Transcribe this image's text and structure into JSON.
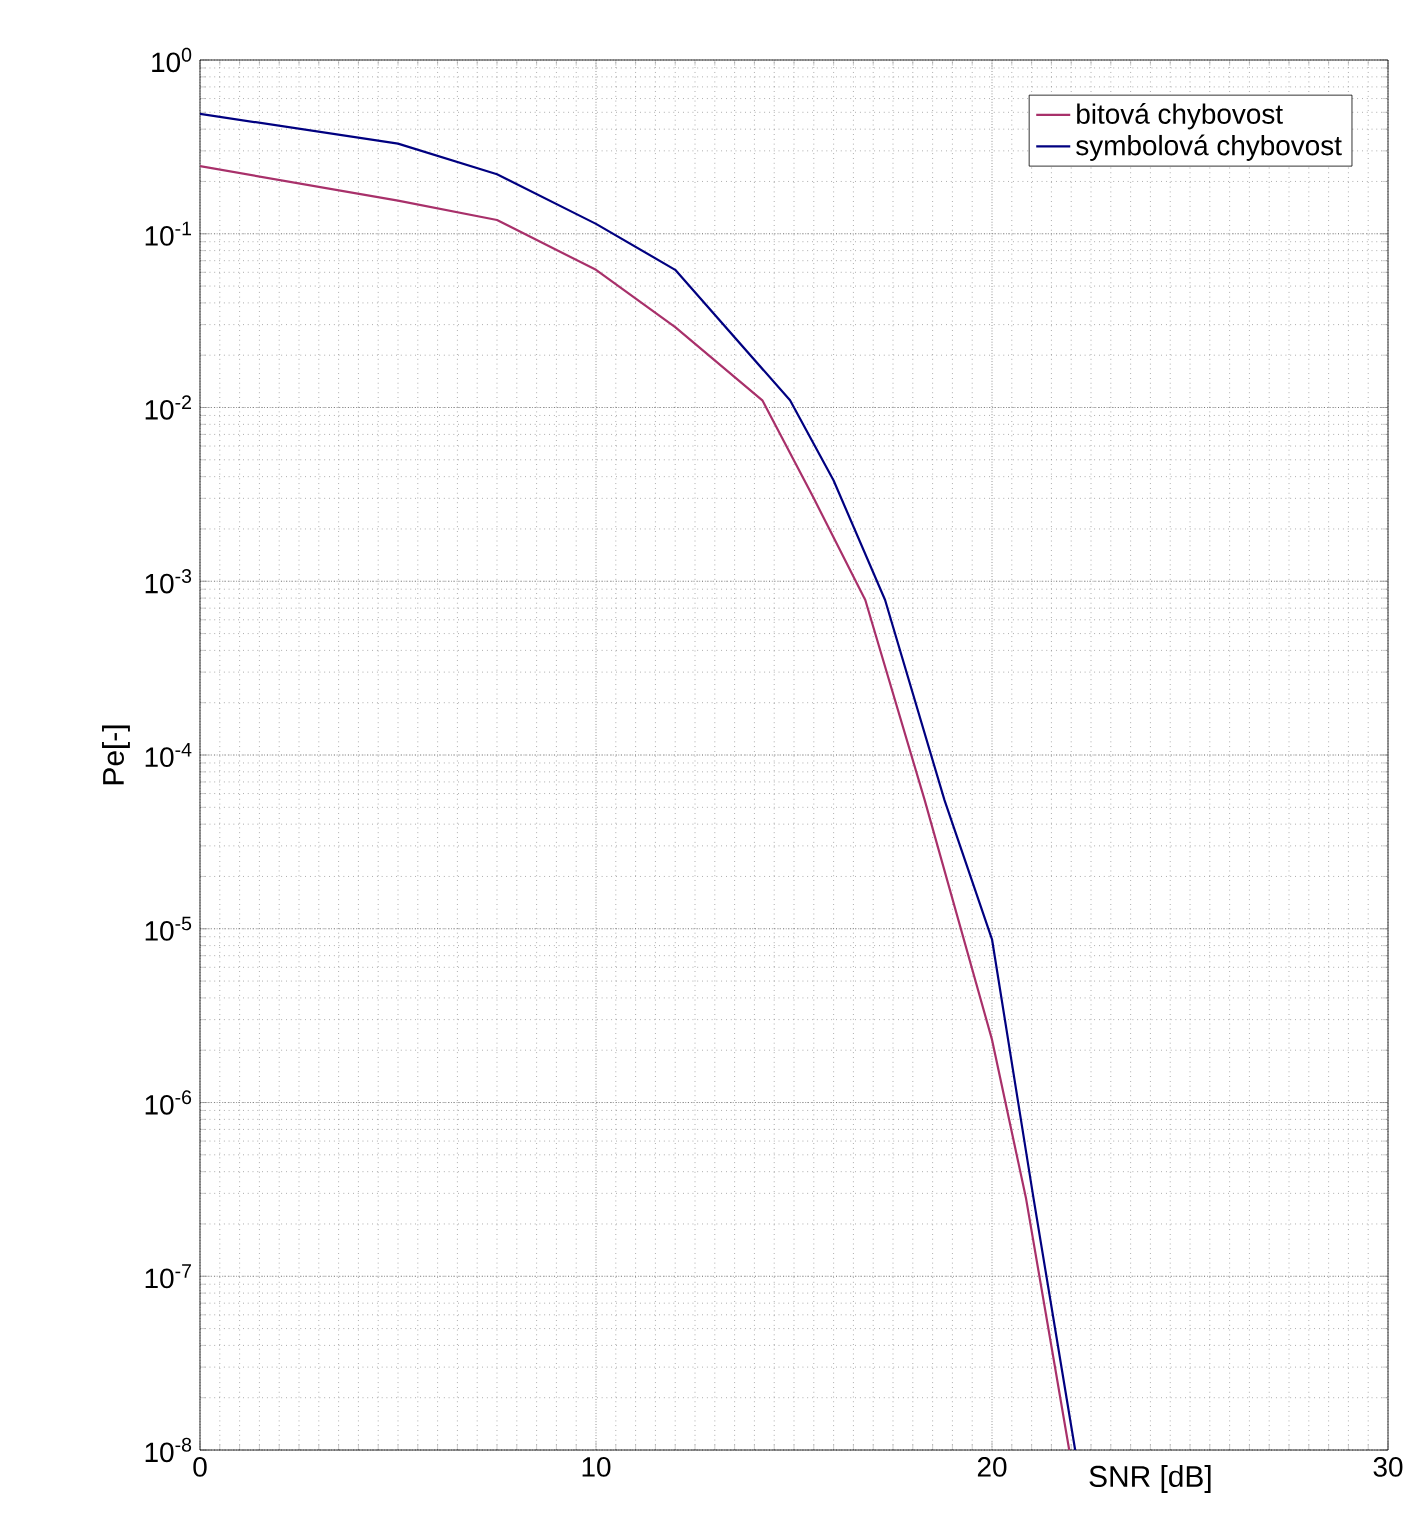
{
  "chart_data": {
    "type": "line",
    "xlabel": "SNR [dB]",
    "ylabel": "Pe[-]",
    "log": "y",
    "grid": true,
    "legend": "top right",
    "xlim": [
      0,
      30
    ],
    "ylim": [
      1e-08,
      1
    ],
    "xticks": [
      0,
      10,
      20,
      30
    ],
    "yticks": [
      {
        "value": 1e-08,
        "label": "10$^{-8}$"
      },
      {
        "value": 1e-07,
        "label": "10$^{-7}$"
      },
      {
        "value": 1e-06,
        "label": "10$^{-6}$"
      },
      {
        "value": 1e-05,
        "label": "10$^{-5}$"
      },
      {
        "value": 0.0001,
        "label": "10$^{-4}$"
      },
      {
        "value": 0.001,
        "label": "10$^{-3}$"
      },
      {
        "value": 0.01,
        "label": "10$^{-2}$"
      },
      {
        "value": 0.1,
        "label": "10$^{-1}$"
      },
      {
        "value": 1,
        "label": "10$^{0}$"
      }
    ],
    "series": [
      {
        "name": "bitová chybovost",
        "color": "#a8306a",
        "x": [
          0,
          5,
          7.5,
          10,
          12,
          14.2,
          15.5,
          16.8,
          18.3,
          20,
          20.86,
          21.95
        ],
        "values": [
          0.245,
          0.155,
          0.12,
          0.062,
          0.029,
          0.011,
          0.003,
          0.00078,
          5.5e-05,
          2.3e-06,
          2.8e-07,
          1e-08
        ]
      },
      {
        "name": "symbolová chybovost",
        "color": "#000080",
        "x": [
          0,
          5,
          7.5,
          10,
          12,
          14.9,
          16,
          17.3,
          18.8,
          20,
          21.05,
          22.1
        ],
        "values": [
          0.49,
          0.33,
          0.22,
          0.114,
          0.062,
          0.011,
          0.0038,
          0.00078,
          5.5e-05,
          8.7e-06,
          2.8e-07,
          1e-08
        ]
      }
    ]
  }
}
